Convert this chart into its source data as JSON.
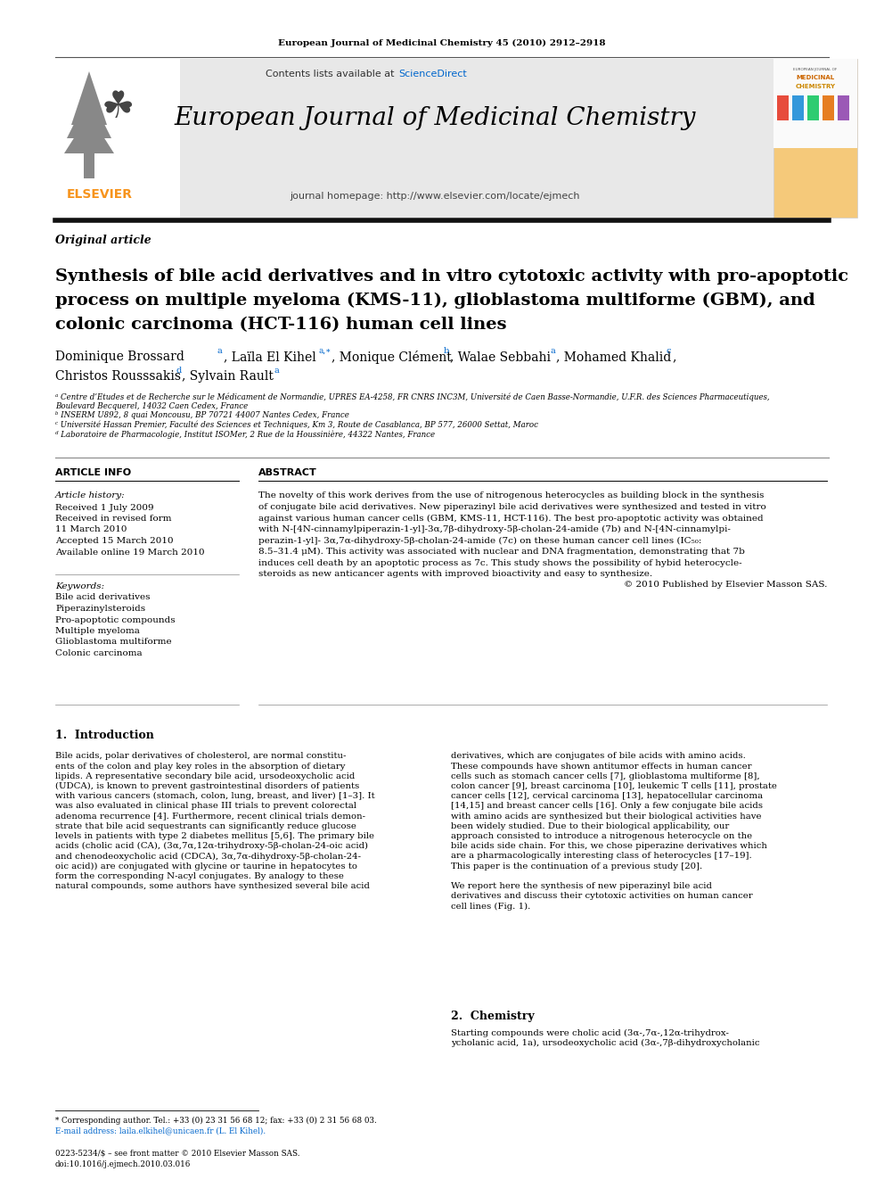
{
  "journal_ref": "European Journal of Medicinal Chemistry 45 (2010) 2912–2918",
  "header_contents": "Contents lists available at",
  "header_sciencedirect": "ScienceDirect",
  "journal_name": "European Journal of Medicinal Chemistry",
  "journal_homepage": "journal homepage: http://www.elsevier.com/locate/ejmech",
  "article_type": "Original article",
  "title_line1": "Synthesis of bile acid derivatives and in vitro cytotoxic activity with pro-apoptotic",
  "title_line2": "process on multiple myeloma (KMS-11), glioblastoma multiforme (GBM), and",
  "title_line3": "colonic carcinoma (HCT-116) human cell lines",
  "affiliations": [
    "ᵃ Centre d’Etudes et de Recherche sur le Médicament de Normandie, UPRES EA-4258, FR CNRS INC3M, Université de Caen Basse-Normandie, U.F.R. des Sciences Pharmaceutiques,",
    "Boulevard Becquerel, 14032 Caen Cedex, France",
    "ᵇ INSERM U892, 8 quai Moncousu, BP 70721 44007 Nantes Cedex, France",
    "ᶜ Université Hassan Premier, Faculté des Sciences et Techniques, Km 3, Route de Casablanca, BP 577, 26000 Settat, Maroc",
    "ᵈ Laboratoire de Pharmacologie, Institut ISOMer, 2 Rue de la Houssinière, 44322 Nantes, France"
  ],
  "article_info_title": "ARTICLE INFO",
  "article_history_title": "Article history:",
  "received": "Received 1 July 2009",
  "received_revised": "Received in revised form",
  "received_revised2": "11 March 2010",
  "accepted": "Accepted 15 March 2010",
  "available": "Available online 19 March 2010",
  "keywords_title": "Keywords:",
  "keywords": [
    "Bile acid derivatives",
    "Piperazinylsteroids",
    "Pro-apoptotic compounds",
    "Multiple myeloma",
    "Glioblastoma multiforme",
    "Colonic carcinoma"
  ],
  "abstract_title": "ABSTRACT",
  "abstract_lines": [
    "The novelty of this work derives from the use of nitrogenous heterocycles as building block in the synthesis",
    "of conjugate bile acid derivatives. New piperazinyl bile acid derivatives were synthesized and tested in vitro",
    "against various human cancer cells (GBM, KMS-11, HCT-116). The best pro-apoptotic activity was obtained",
    "with N-[4N-cinnamylpiperazin-1-yl]-3α,7β-dihydroxy-5β-cholan-24-amide (7b) and N-[4N-cinnamylpi-",
    "perazin-1-yl]- 3α,7α-dihydroxy-5β-cholan-24-amide (7c) on these human cancer cell lines (IC₅₀:",
    "8.5–31.4 μM). This activity was associated with nuclear and DNA fragmentation, demonstrating that 7b",
    "induces cell death by an apoptotic process as 7c. This study shows the possibility of hybid heterocycle-",
    "steroids as new anticancer agents with improved bioactivity and easy to synthesize.",
    "© 2010 Published by Elsevier Masson SAS."
  ],
  "intro_title": "1.  Introduction",
  "intro_col1_lines": [
    "Bile acids, polar derivatives of cholesterol, are normal constitu-",
    "ents of the colon and play key roles in the absorption of dietary",
    "lipids. A representative secondary bile acid, ursodeoxycholic acid",
    "(UDCA), is known to prevent gastrointestinal disorders of patients",
    "with various cancers (stomach, colon, lung, breast, and liver) [1–3]. It",
    "was also evaluated in clinical phase III trials to prevent colorectal",
    "adenoma recurrence [4]. Furthermore, recent clinical trials demon-",
    "strate that bile acid sequestrants can significantly reduce glucose",
    "levels in patients with type 2 diabetes mellitus [5,6]. The primary bile",
    "acids (cholic acid (CA), (3α,7α,12α-trihydroxy-5β-cholan-24-oic acid)",
    "and chenodeoxycholic acid (CDCA), 3α,7α-dihydroxy-5β-cholan-24-",
    "oic acid)) are conjugated with glycine or taurine in hepatocytes to",
    "form the corresponding N-acyl conjugates. By analogy to these",
    "natural compounds, some authors have synthesized several bile acid"
  ],
  "intro_col2_lines": [
    "derivatives, which are conjugates of bile acids with amino acids.",
    "These compounds have shown antitumor effects in human cancer",
    "cells such as stomach cancer cells [7], glioblastoma multiforme [8],",
    "colon cancer [9], breast carcinoma [10], leukemic T cells [11], prostate",
    "cancer cells [12], cervical carcinoma [13], hepatocellular carcinoma",
    "[14,15] and breast cancer cells [16]. Only a few conjugate bile acids",
    "with amino acids are synthesized but their biological activities have",
    "been widely studied. Due to their biological applicability, our",
    "approach consisted to introduce a nitrogenous heterocycle on the",
    "bile acids side chain. For this, we chose piperazine derivatives which",
    "are a pharmacologically interesting class of heterocycles [17–19].",
    "This paper is the continuation of a previous study [20].",
    "",
    "We report here the synthesis of new piperazinyl bile acid",
    "derivatives and discuss their cytotoxic activities on human cancer",
    "cell lines (Fig. 1)."
  ],
  "chemistry_title": "2.  Chemistry",
  "chemistry_col2_lines": [
    "Starting compounds were cholic acid (3α-,7α-,12α-trihydrox-",
    "ycholanic acid, 1a), ursodeoxycholic acid (3α-,7β-dihydroxycholanic"
  ],
  "footnote1": "* Corresponding author. Tel.: +33 (0) 23 31 56 68 12; fax: +33 (0) 2 31 56 68 03.",
  "footnote2": "E-mail address: laila.elkihel@unicaen.fr (L. El Kihel).",
  "footnote3": "0223-5234/$ – see front matter © 2010 Elsevier Masson SAS.",
  "footnote4": "doi:10.1016/j.ejmech.2010.03.016",
  "bg_color": "#ffffff",
  "header_bg": "#e8e8e8",
  "elsevier_orange": "#f7941d",
  "link_color": "#0066cc"
}
